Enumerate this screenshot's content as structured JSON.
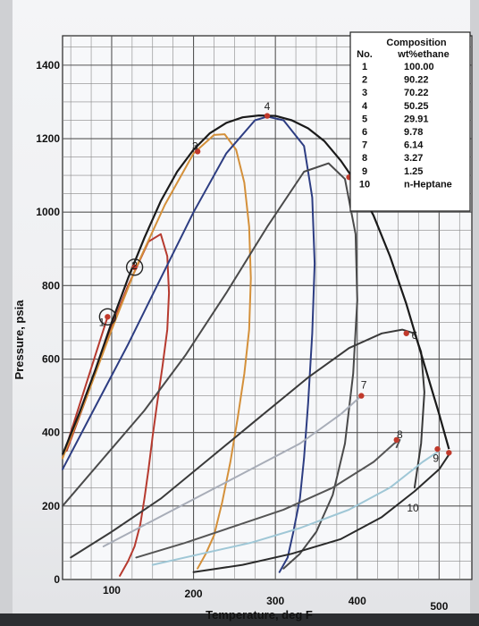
{
  "chart_data": {
    "type": "line",
    "title": "",
    "xlabel": "Temperature, deg F",
    "ylabel": "Pressure, psia",
    "xlim": [
      40,
      540
    ],
    "ylim": [
      0,
      1480
    ],
    "xticks": [
      "100",
      "200",
      "300",
      "400",
      "500"
    ],
    "yticks": [
      "0",
      "200",
      "400",
      "600",
      "800",
      "1000",
      "1200",
      "1400"
    ],
    "grid": true,
    "legend": {
      "placement": "top-right",
      "title": "Composition",
      "col1_header": "No.",
      "col2_header": "wt%ethane",
      "rows": [
        {
          "no": "1",
          "value": "100.00"
        },
        {
          "no": "2",
          "value": "90.22"
        },
        {
          "no": "3",
          "value": "70.22"
        },
        {
          "no": "4",
          "value": "50.25"
        },
        {
          "no": "5",
          "value": "29.91"
        },
        {
          "no": "6",
          "value": "9.78"
        },
        {
          "no": "7",
          "value": "6.14"
        },
        {
          "no": "8",
          "value": "3.27"
        },
        {
          "no": "9",
          "value": "1.25"
        },
        {
          "no": "10",
          "value": "n-Heptane"
        }
      ]
    },
    "envelope": {
      "color": "#1a1a1a",
      "x": [
        40,
        60,
        80,
        100,
        120,
        140,
        160,
        180,
        200,
        220,
        240,
        260,
        280,
        300,
        320,
        340,
        360,
        380,
        400,
        420,
        440,
        460,
        480,
        500,
        512
      ],
      "y": [
        340,
        450,
        570,
        700,
        820,
        930,
        1030,
        1110,
        1170,
        1215,
        1243,
        1258,
        1263,
        1262,
        1250,
        1228,
        1193,
        1140,
        1075,
        990,
        880,
        750,
        600,
        450,
        355
      ]
    },
    "series": [
      {
        "name": "1",
        "color": "#b63a2f",
        "x": [
          40,
          60,
          80,
          95
        ],
        "y": [
          330,
          470,
          610,
          715
        ]
      },
      {
        "name": "2",
        "color": "#b63a2f",
        "x": [
          45,
          70,
          95,
          120,
          145,
          160,
          168,
          170,
          168,
          162,
          155,
          150,
          145,
          140,
          135,
          128,
          120,
          110
        ],
        "y": [
          350,
          500,
          660,
          800,
          920,
          940,
          880,
          780,
          680,
          580,
          470,
          390,
          300,
          220,
          150,
          90,
          50,
          10
        ]
      },
      {
        "name": "3",
        "color": "#d4903a",
        "x": [
          40,
          70,
          100,
          130,
          165,
          200,
          225,
          238,
          252,
          262,
          268,
          270,
          268,
          262,
          254,
          245,
          235,
          225,
          215,
          205
        ],
        "y": [
          330,
          500,
          680,
          850,
          1020,
          1160,
          1210,
          1212,
          1170,
          1080,
          960,
          820,
          680,
          560,
          440,
          320,
          210,
          120,
          70,
          30
        ]
      },
      {
        "name": "4",
        "color": "#2d3d82",
        "x": [
          40,
          80,
          120,
          160,
          200,
          240,
          275,
          290,
          310,
          335,
          345,
          348,
          345,
          340,
          335,
          330,
          322,
          315,
          305
        ],
        "y": [
          300,
          470,
          640,
          820,
          1000,
          1160,
          1250,
          1260,
          1250,
          1180,
          1040,
          860,
          670,
          480,
          330,
          220,
          130,
          60,
          20
        ]
      },
      {
        "name": "5",
        "color": "#4a4a4a",
        "x": [
          40,
          90,
          140,
          190,
          240,
          290,
          335,
          365,
          385,
          398,
          400,
          395,
          385,
          370,
          350,
          330,
          310
        ],
        "y": [
          200,
          330,
          460,
          610,
          780,
          960,
          1110,
          1133,
          1090,
          940,
          760,
          560,
          370,
          230,
          130,
          70,
          30
        ]
      },
      {
        "name": "6",
        "color": "#3a3a3a",
        "x": [
          50,
          100,
          160,
          220,
          280,
          340,
          390,
          430,
          455,
          470,
          478,
          482,
          478,
          470
        ],
        "y": [
          60,
          130,
          220,
          330,
          440,
          550,
          630,
          670,
          680,
          670,
          620,
          510,
          370,
          250
        ]
      },
      {
        "name": "7",
        "color": "#a8adb8",
        "x": [
          90,
          150,
          210,
          270,
          330,
          380,
          405
        ],
        "y": [
          90,
          160,
          230,
          300,
          370,
          450,
          500
        ]
      },
      {
        "name": "8",
        "color": "#555555",
        "x": [
          130,
          190,
          250,
          310,
          370,
          420,
          445,
          452,
          448
        ],
        "y": [
          60,
          100,
          145,
          190,
          250,
          320,
          370,
          380,
          360
        ]
      },
      {
        "name": "9",
        "color": "#9fc7d6",
        "x": [
          150,
          210,
          270,
          330,
          390,
          440,
          480,
          500
        ],
        "y": [
          40,
          70,
          100,
          140,
          190,
          250,
          320,
          350
        ]
      },
      {
        "name": "10",
        "color": "#2a2a2a",
        "x": [
          200,
          260,
          320,
          380,
          430,
          470,
          500,
          512
        ],
        "y": [
          20,
          40,
          70,
          110,
          170,
          240,
          300,
          340
        ]
      }
    ],
    "curve_labels": [
      {
        "text": "1",
        "x": 88,
        "y": 690
      },
      {
        "text": "2",
        "x": 128,
        "y": 845
      },
      {
        "text": "3",
        "x": 202,
        "y": 1170
      },
      {
        "text": "4",
        "x": 290,
        "y": 1278
      },
      {
        "text": "5",
        "x": 405,
        "y": 1090
      },
      {
        "text": "6",
        "x": 470,
        "y": 655
      },
      {
        "text": "7",
        "x": 408,
        "y": 520
      },
      {
        "text": "8",
        "x": 452,
        "y": 385
      },
      {
        "text": "9",
        "x": 496,
        "y": 320
      },
      {
        "text": "10",
        "x": 468,
        "y": 185
      }
    ],
    "points": [
      {
        "x": 95,
        "y": 715,
        "ring": true
      },
      {
        "x": 128,
        "y": 850,
        "ring": true
      },
      {
        "x": 205,
        "y": 1165,
        "ring": false
      },
      {
        "x": 290,
        "y": 1262,
        "ring": false
      },
      {
        "x": 390,
        "y": 1095,
        "ring": false
      },
      {
        "x": 460,
        "y": 670,
        "ring": false
      },
      {
        "x": 405,
        "y": 500,
        "ring": false
      },
      {
        "x": 448,
        "y": 380,
        "ring": false
      },
      {
        "x": 498,
        "y": 355,
        "ring": false
      },
      {
        "x": 512,
        "y": 345,
        "ring": false
      }
    ]
  }
}
